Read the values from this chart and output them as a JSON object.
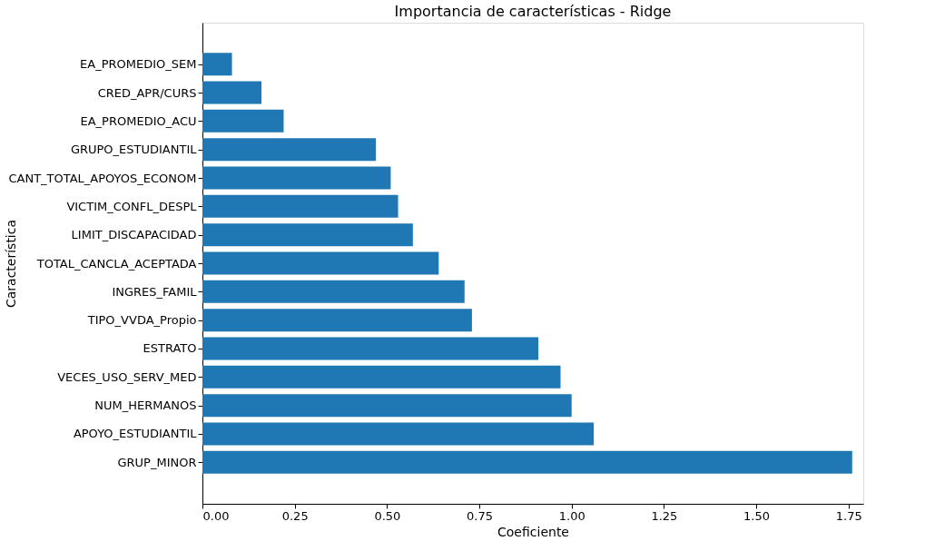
{
  "chart_data": {
    "type": "bar",
    "orientation": "horizontal",
    "title": "Importancia de características - Ridge",
    "xlabel": "Coeficiente",
    "ylabel": "Característica",
    "categories": [
      "EA_PROMEDIO_SEM",
      "CRED_APR/CURS",
      "EA_PROMEDIO_ACU",
      "GRUPO_ESTUDIANTIL",
      "CANT_TOTAL_APOYOS_ECONOM",
      "VICTIM_CONFL_DESPL",
      "LIMIT_DISCAPACIDAD",
      "TOTAL_CANCLA_ACEPTADA",
      "INGRES_FAMIL",
      "TIPO_VVDA_Propio",
      "ESTRATO",
      "VECES_USO_SERV_MED",
      "NUM_HERMANOS",
      "APOYO_ESTUDIANTIL",
      "GRUP_MINOR"
    ],
    "values": [
      0.08,
      0.16,
      0.22,
      0.47,
      0.51,
      0.53,
      0.57,
      0.64,
      0.71,
      0.73,
      0.91,
      0.97,
      1.0,
      1.06,
      1.76
    ],
    "color": "#1f77b4",
    "xlim": [
      0,
      1.79
    ],
    "xticks": [
      {
        "value": 0,
        "label": "0.00"
      },
      0.25,
      {
        "value": 0.5,
        "label": "0.50"
      },
      0.75,
      {
        "value": 1,
        "label": "1.00"
      },
      1.25,
      {
        "value": 1.5,
        "label": "1.50"
      },
      1.75
    ],
    "grid": false
  }
}
